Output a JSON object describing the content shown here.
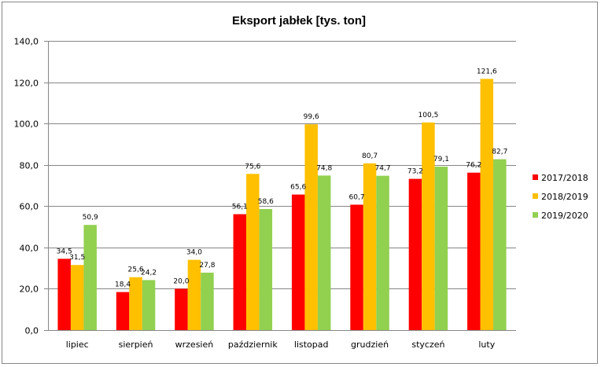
{
  "chart_data": {
    "type": "bar",
    "title": "Eksport jabłek [tys. ton]",
    "xlabel": "",
    "ylabel": "",
    "ylim": [
      0,
      140
    ],
    "yticks": [
      "0,0",
      "20,0",
      "40,0",
      "60,0",
      "80,0",
      "100,0",
      "120,0",
      "140,0"
    ],
    "ytick_values": [
      0,
      20,
      40,
      60,
      80,
      100,
      120,
      140
    ],
    "grid": true,
    "legend_position": "right",
    "categories": [
      "lipiec",
      "sierpień",
      "wrzesień",
      "październik",
      "listopad",
      "grudzień",
      "styczeń",
      "luty"
    ],
    "series": [
      {
        "name": "2017/2018",
        "color": "#FF0000",
        "values": [
          34.5,
          18.4,
          20.0,
          56.1,
          65.6,
          60.7,
          73.2,
          76.2
        ],
        "labels": [
          "34,5",
          "18,4",
          "20,0",
          "56,1",
          "65,6",
          "60,7",
          "73,2",
          "76,2"
        ]
      },
      {
        "name": "2018/2019",
        "color": "#FFC000",
        "values": [
          31.5,
          25.6,
          34.0,
          75.6,
          99.6,
          80.7,
          100.5,
          121.6
        ],
        "labels": [
          "31,5",
          "25,6",
          "34,0",
          "75,6",
          "99,6",
          "80,7",
          "100,5",
          "121,6"
        ]
      },
      {
        "name": "2019/2020",
        "color": "#92D050",
        "values": [
          50.9,
          24.2,
          27.8,
          58.6,
          74.8,
          74.7,
          79.1,
          82.7
        ],
        "labels": [
          "50,9",
          "24,2",
          "27,8",
          "58,6",
          "74,8",
          "74,7",
          "79,1",
          "82,7"
        ]
      }
    ]
  }
}
